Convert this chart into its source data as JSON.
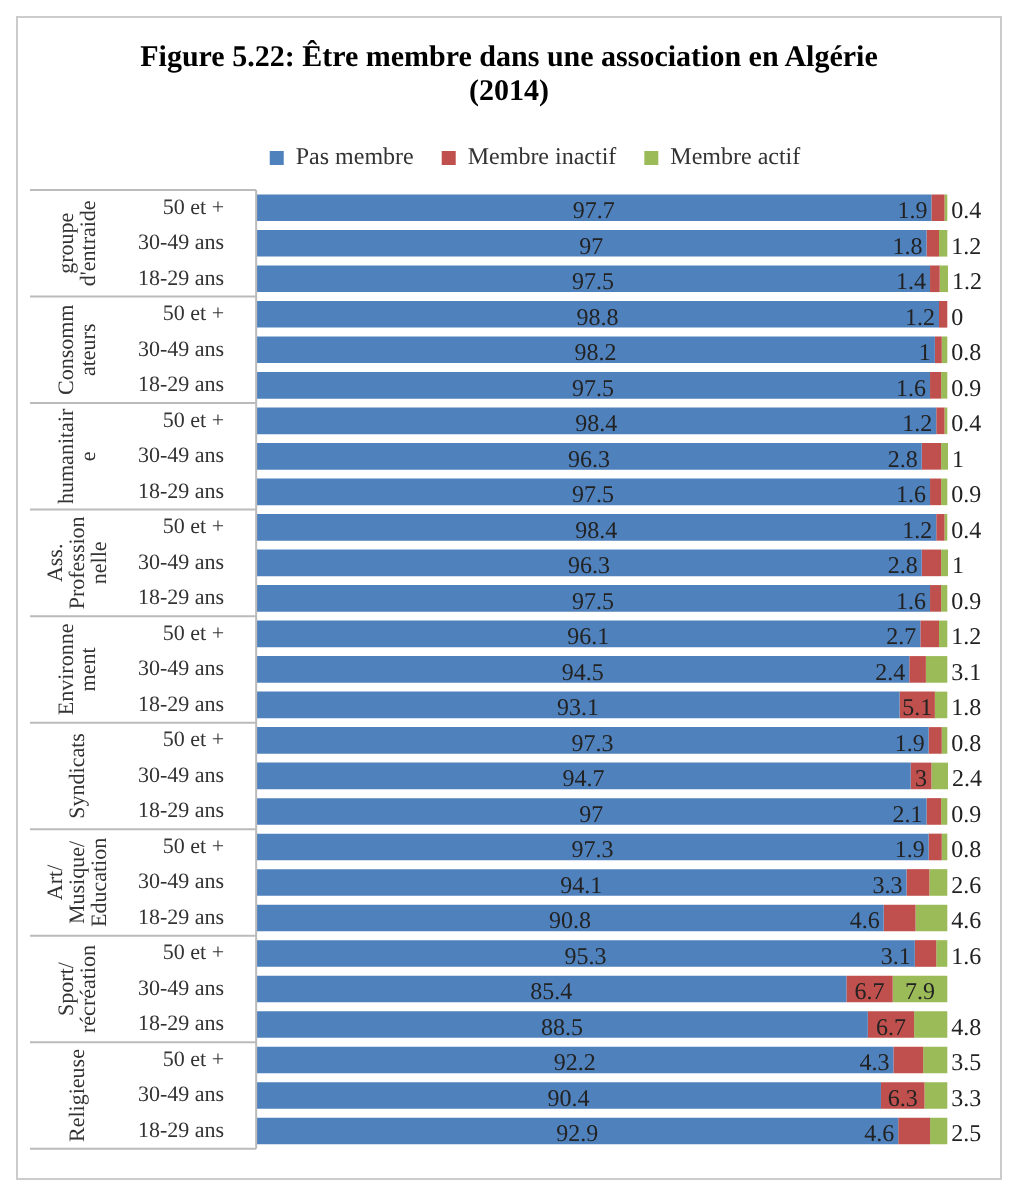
{
  "chart_data": {
    "type": "bar",
    "orientation": "horizontal",
    "stacked": true,
    "title": "Figure 5.22: Être membre dans une association en Algérie (2014)",
    "categories": [
      "50 et +",
      "30-49 ans",
      "18-29 ans",
      "50 et +",
      "30-49 ans",
      "18-29 ans",
      "50 et +",
      "30-49 ans",
      "18-29 ans",
      "50 et +",
      "30-49 ans",
      "18-29 ans",
      "50 et +",
      "30-49 ans",
      "18-29 ans",
      "50 et +",
      "30-49 ans",
      "18-29 ans",
      "50 et +",
      "30-49 ans",
      "18-29 ans",
      "50 et +",
      "30-49 ans",
      "18-29 ans",
      "50 et +",
      "30-49 ans",
      "18-29 ans"
    ],
    "annotations": [
      "groupe d'entraide",
      "Consommateurs",
      "humanitaire",
      "Ass. Professionnelle",
      "Environnement",
      "Syndicats",
      "Art/ Musique/ Education",
      "Sport/ récréation",
      "Religieuse"
    ],
    "series": [
      {
        "name": "Pas membre",
        "color": "#4f81bd",
        "values": [
          97.7,
          97,
          97.5,
          98.8,
          98.2,
          97.5,
          98.4,
          96.3,
          97.5,
          98.4,
          96.3,
          97.5,
          96.1,
          94.5,
          93.1,
          97.3,
          94.7,
          97,
          97.3,
          94.1,
          90.8,
          95.3,
          85.4,
          88.5,
          92.2,
          90.4,
          92.9
        ]
      },
      {
        "name": "Membre inactif",
        "color": "#c0504d",
        "values": [
          1.9,
          1.8,
          1.4,
          1.2,
          1,
          1.6,
          1.2,
          2.8,
          1.6,
          1.2,
          2.8,
          1.6,
          2.7,
          2.4,
          5.1,
          1.9,
          3,
          2.1,
          1.9,
          3.3,
          4.6,
          3.1,
          6.7,
          6.7,
          4.3,
          6.3,
          4.6
        ]
      },
      {
        "name": "Membre actif",
        "color": "#9bbb59",
        "values": [
          0.4,
          1.2,
          1.2,
          0,
          0.8,
          0.9,
          0.4,
          1,
          0.9,
          0.4,
          1,
          0.9,
          1.2,
          3.1,
          1.8,
          0.8,
          2.4,
          0.9,
          0.8,
          2.6,
          4.6,
          1.6,
          7.9,
          4.8,
          3.5,
          3.3,
          2.5
        ]
      }
    ],
    "data_labels": true,
    "legend": "top",
    "grid": false,
    "tick_labels": "y"
  }
}
